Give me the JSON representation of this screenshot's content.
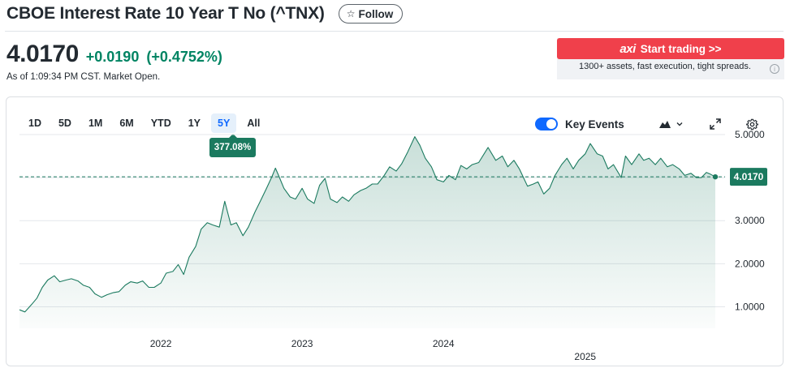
{
  "header": {
    "title": "CBOE Interest Rate 10 Year T No (^TNX)",
    "follow_label": "Follow",
    "follow_icon": "star-outline-icon"
  },
  "quote": {
    "price": "4.0170",
    "change": "+0.0190",
    "change_percent": "(+0.4752%)",
    "as_of": "As of 1:09:34 PM CST. Market Open.",
    "change_color": "#008463"
  },
  "ad": {
    "brand": "axi",
    "cta": "Start trading >>",
    "text": "1300+ assets, fast execution, tight spreads.",
    "info_icon": "info-icon",
    "color": "#f0404b"
  },
  "chart_controls": {
    "ranges": [
      "1D",
      "5D",
      "1M",
      "6M",
      "YTD",
      "1Y",
      "5Y",
      "All"
    ],
    "active_range": "5Y",
    "range_change": "377.08%",
    "key_events_label": "Key Events",
    "key_events_on": true,
    "chart_type_icon": "mountain-chart-icon",
    "expand_icon": "expand-icon",
    "settings_icon": "gear-icon"
  },
  "chart_data": {
    "type": "area",
    "title": "",
    "xlabel": "",
    "ylabel": "",
    "x_range": [
      "2021-01-01",
      "2025-12-03"
    ],
    "ylim": [
      0.5,
      5.3
    ],
    "y_ticks": [
      {
        "value": 5.0,
        "label": "5.0000"
      },
      {
        "value": 4.0,
        "label": "4.0000"
      },
      {
        "value": 3.0,
        "label": "3.0000"
      },
      {
        "value": 2.0,
        "label": "2.0000"
      },
      {
        "value": 1.0,
        "label": "1.0000"
      }
    ],
    "x_ticks": [
      {
        "value": "2022-01-01",
        "label": "2022"
      },
      {
        "value": "2023-01-01",
        "label": "2023"
      },
      {
        "value": "2024-01-01",
        "label": "2024"
      },
      {
        "value": "2025-01-01",
        "label": "2025"
      }
    ],
    "reference_value": 4.017,
    "last_value": 4.017,
    "last_label": "4.0170",
    "grid": true,
    "line_color": "#1b7a5f",
    "fill_color": "#1b7a5f",
    "series": [
      {
        "points": [
          [
            "2021-01-01",
            0.93
          ],
          [
            "2021-01-15",
            0.88
          ],
          [
            "2021-02-01",
            1.05
          ],
          [
            "2021-02-15",
            1.2
          ],
          [
            "2021-03-01",
            1.45
          ],
          [
            "2021-03-15",
            1.62
          ],
          [
            "2021-04-01",
            1.72
          ],
          [
            "2021-04-15",
            1.58
          ],
          [
            "2021-05-01",
            1.62
          ],
          [
            "2021-05-15",
            1.65
          ],
          [
            "2021-06-01",
            1.6
          ],
          [
            "2021-06-15",
            1.5
          ],
          [
            "2021-07-01",
            1.45
          ],
          [
            "2021-07-15",
            1.3
          ],
          [
            "2021-08-01",
            1.22
          ],
          [
            "2021-08-15",
            1.28
          ],
          [
            "2021-09-01",
            1.33
          ],
          [
            "2021-09-15",
            1.35
          ],
          [
            "2021-10-01",
            1.5
          ],
          [
            "2021-10-15",
            1.58
          ],
          [
            "2021-11-01",
            1.55
          ],
          [
            "2021-11-15",
            1.6
          ],
          [
            "2021-12-01",
            1.45
          ],
          [
            "2021-12-15",
            1.45
          ],
          [
            "2022-01-01",
            1.55
          ],
          [
            "2022-01-15",
            1.78
          ],
          [
            "2022-02-01",
            1.82
          ],
          [
            "2022-02-15",
            1.98
          ],
          [
            "2022-03-01",
            1.75
          ],
          [
            "2022-03-15",
            2.15
          ],
          [
            "2022-04-01",
            2.4
          ],
          [
            "2022-04-15",
            2.8
          ],
          [
            "2022-05-01",
            2.95
          ],
          [
            "2022-05-15",
            2.9
          ],
          [
            "2022-06-01",
            2.85
          ],
          [
            "2022-06-15",
            3.45
          ],
          [
            "2022-07-01",
            2.9
          ],
          [
            "2022-07-15",
            2.95
          ],
          [
            "2022-08-01",
            2.65
          ],
          [
            "2022-08-15",
            2.85
          ],
          [
            "2022-09-01",
            3.2
          ],
          [
            "2022-09-15",
            3.45
          ],
          [
            "2022-10-01",
            3.75
          ],
          [
            "2022-10-15",
            4.02
          ],
          [
            "2022-10-24",
            4.22
          ],
          [
            "2022-11-01",
            4.05
          ],
          [
            "2022-11-15",
            3.75
          ],
          [
            "2022-12-01",
            3.55
          ],
          [
            "2022-12-15",
            3.5
          ],
          [
            "2023-01-01",
            3.75
          ],
          [
            "2023-01-15",
            3.5
          ],
          [
            "2023-02-01",
            3.4
          ],
          [
            "2023-02-15",
            3.82
          ],
          [
            "2023-03-01",
            3.98
          ],
          [
            "2023-03-15",
            3.5
          ],
          [
            "2023-04-01",
            3.42
          ],
          [
            "2023-04-15",
            3.55
          ],
          [
            "2023-05-01",
            3.45
          ],
          [
            "2023-05-15",
            3.6
          ],
          [
            "2023-06-01",
            3.7
          ],
          [
            "2023-06-15",
            3.75
          ],
          [
            "2023-07-01",
            3.85
          ],
          [
            "2023-07-15",
            3.85
          ],
          [
            "2023-08-01",
            4.05
          ],
          [
            "2023-08-15",
            4.25
          ],
          [
            "2023-09-01",
            4.15
          ],
          [
            "2023-09-15",
            4.32
          ],
          [
            "2023-10-01",
            4.6
          ],
          [
            "2023-10-19",
            4.95
          ],
          [
            "2023-11-01",
            4.75
          ],
          [
            "2023-11-15",
            4.45
          ],
          [
            "2023-12-01",
            4.25
          ],
          [
            "2023-12-15",
            3.95
          ],
          [
            "2024-01-01",
            3.9
          ],
          [
            "2024-01-15",
            4.05
          ],
          [
            "2024-02-01",
            3.95
          ],
          [
            "2024-02-15",
            4.28
          ],
          [
            "2024-03-01",
            4.2
          ],
          [
            "2024-03-15",
            4.3
          ],
          [
            "2024-04-01",
            4.35
          ],
          [
            "2024-04-25",
            4.7
          ],
          [
            "2024-05-15",
            4.4
          ],
          [
            "2024-06-01",
            4.5
          ],
          [
            "2024-06-15",
            4.25
          ],
          [
            "2024-07-01",
            4.4
          ],
          [
            "2024-07-15",
            4.2
          ],
          [
            "2024-08-05",
            3.8
          ],
          [
            "2024-08-20",
            3.85
          ],
          [
            "2024-09-01",
            3.9
          ],
          [
            "2024-09-16",
            3.62
          ],
          [
            "2024-10-01",
            3.75
          ],
          [
            "2024-10-15",
            4.05
          ],
          [
            "2024-11-01",
            4.3
          ],
          [
            "2024-11-15",
            4.45
          ],
          [
            "2024-12-01",
            4.2
          ],
          [
            "2024-12-15",
            4.4
          ],
          [
            "2025-01-01",
            4.55
          ],
          [
            "2025-01-14",
            4.79
          ],
          [
            "2025-02-01",
            4.55
          ],
          [
            "2025-02-15",
            4.5
          ],
          [
            "2025-03-01",
            4.2
          ],
          [
            "2025-03-15",
            4.3
          ],
          [
            "2025-04-04",
            4.0
          ],
          [
            "2025-04-15",
            4.5
          ],
          [
            "2025-05-01",
            4.3
          ],
          [
            "2025-05-20",
            4.55
          ],
          [
            "2025-06-01",
            4.4
          ],
          [
            "2025-06-15",
            4.45
          ],
          [
            "2025-07-01",
            4.3
          ],
          [
            "2025-07-15",
            4.45
          ],
          [
            "2025-08-01",
            4.25
          ],
          [
            "2025-08-15",
            4.3
          ],
          [
            "2025-09-01",
            4.2
          ],
          [
            "2025-09-15",
            4.05
          ],
          [
            "2025-10-01",
            4.1
          ],
          [
            "2025-10-15",
            4.0
          ],
          [
            "2025-10-28",
            4.0
          ],
          [
            "2025-11-10",
            4.12
          ],
          [
            "2025-11-20",
            4.08
          ],
          [
            "2025-12-03",
            4.017
          ]
        ]
      }
    ]
  }
}
